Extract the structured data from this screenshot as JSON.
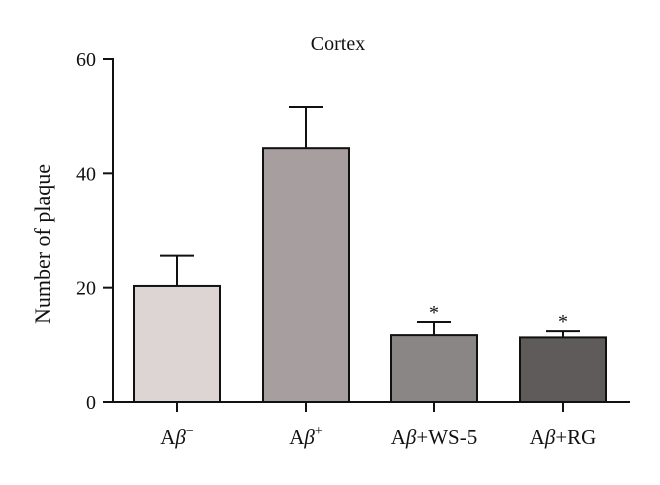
{
  "chart_data": {
    "type": "bar",
    "title": "Cortex",
    "xlabel": "",
    "ylabel": "Number of plaque",
    "categories": [
      {
        "base": "A",
        "greek": "β",
        "sup": "−",
        "suffix": ""
      },
      {
        "base": "A",
        "greek": "β",
        "sup": "+",
        "suffix": ""
      },
      {
        "base": "A",
        "greek": "β",
        "sup": "",
        "suffix": "+WS-5"
      },
      {
        "base": "A",
        "greek": "β",
        "sup": "",
        "suffix": "+RG"
      }
    ],
    "values": [
      20.3,
      44.4,
      11.7,
      11.3
    ],
    "errors": [
      5.3,
      7.2,
      2.3,
      1.1
    ],
    "significance": [
      "",
      "",
      "*",
      "*"
    ],
    "colors": [
      "#ddd5d3",
      "#a69e9f",
      "#8b8686",
      "#605b5b"
    ],
    "ylim": [
      0,
      60
    ],
    "yticks": [
      0,
      20,
      40,
      60
    ],
    "grid": false,
    "legend": "none"
  }
}
